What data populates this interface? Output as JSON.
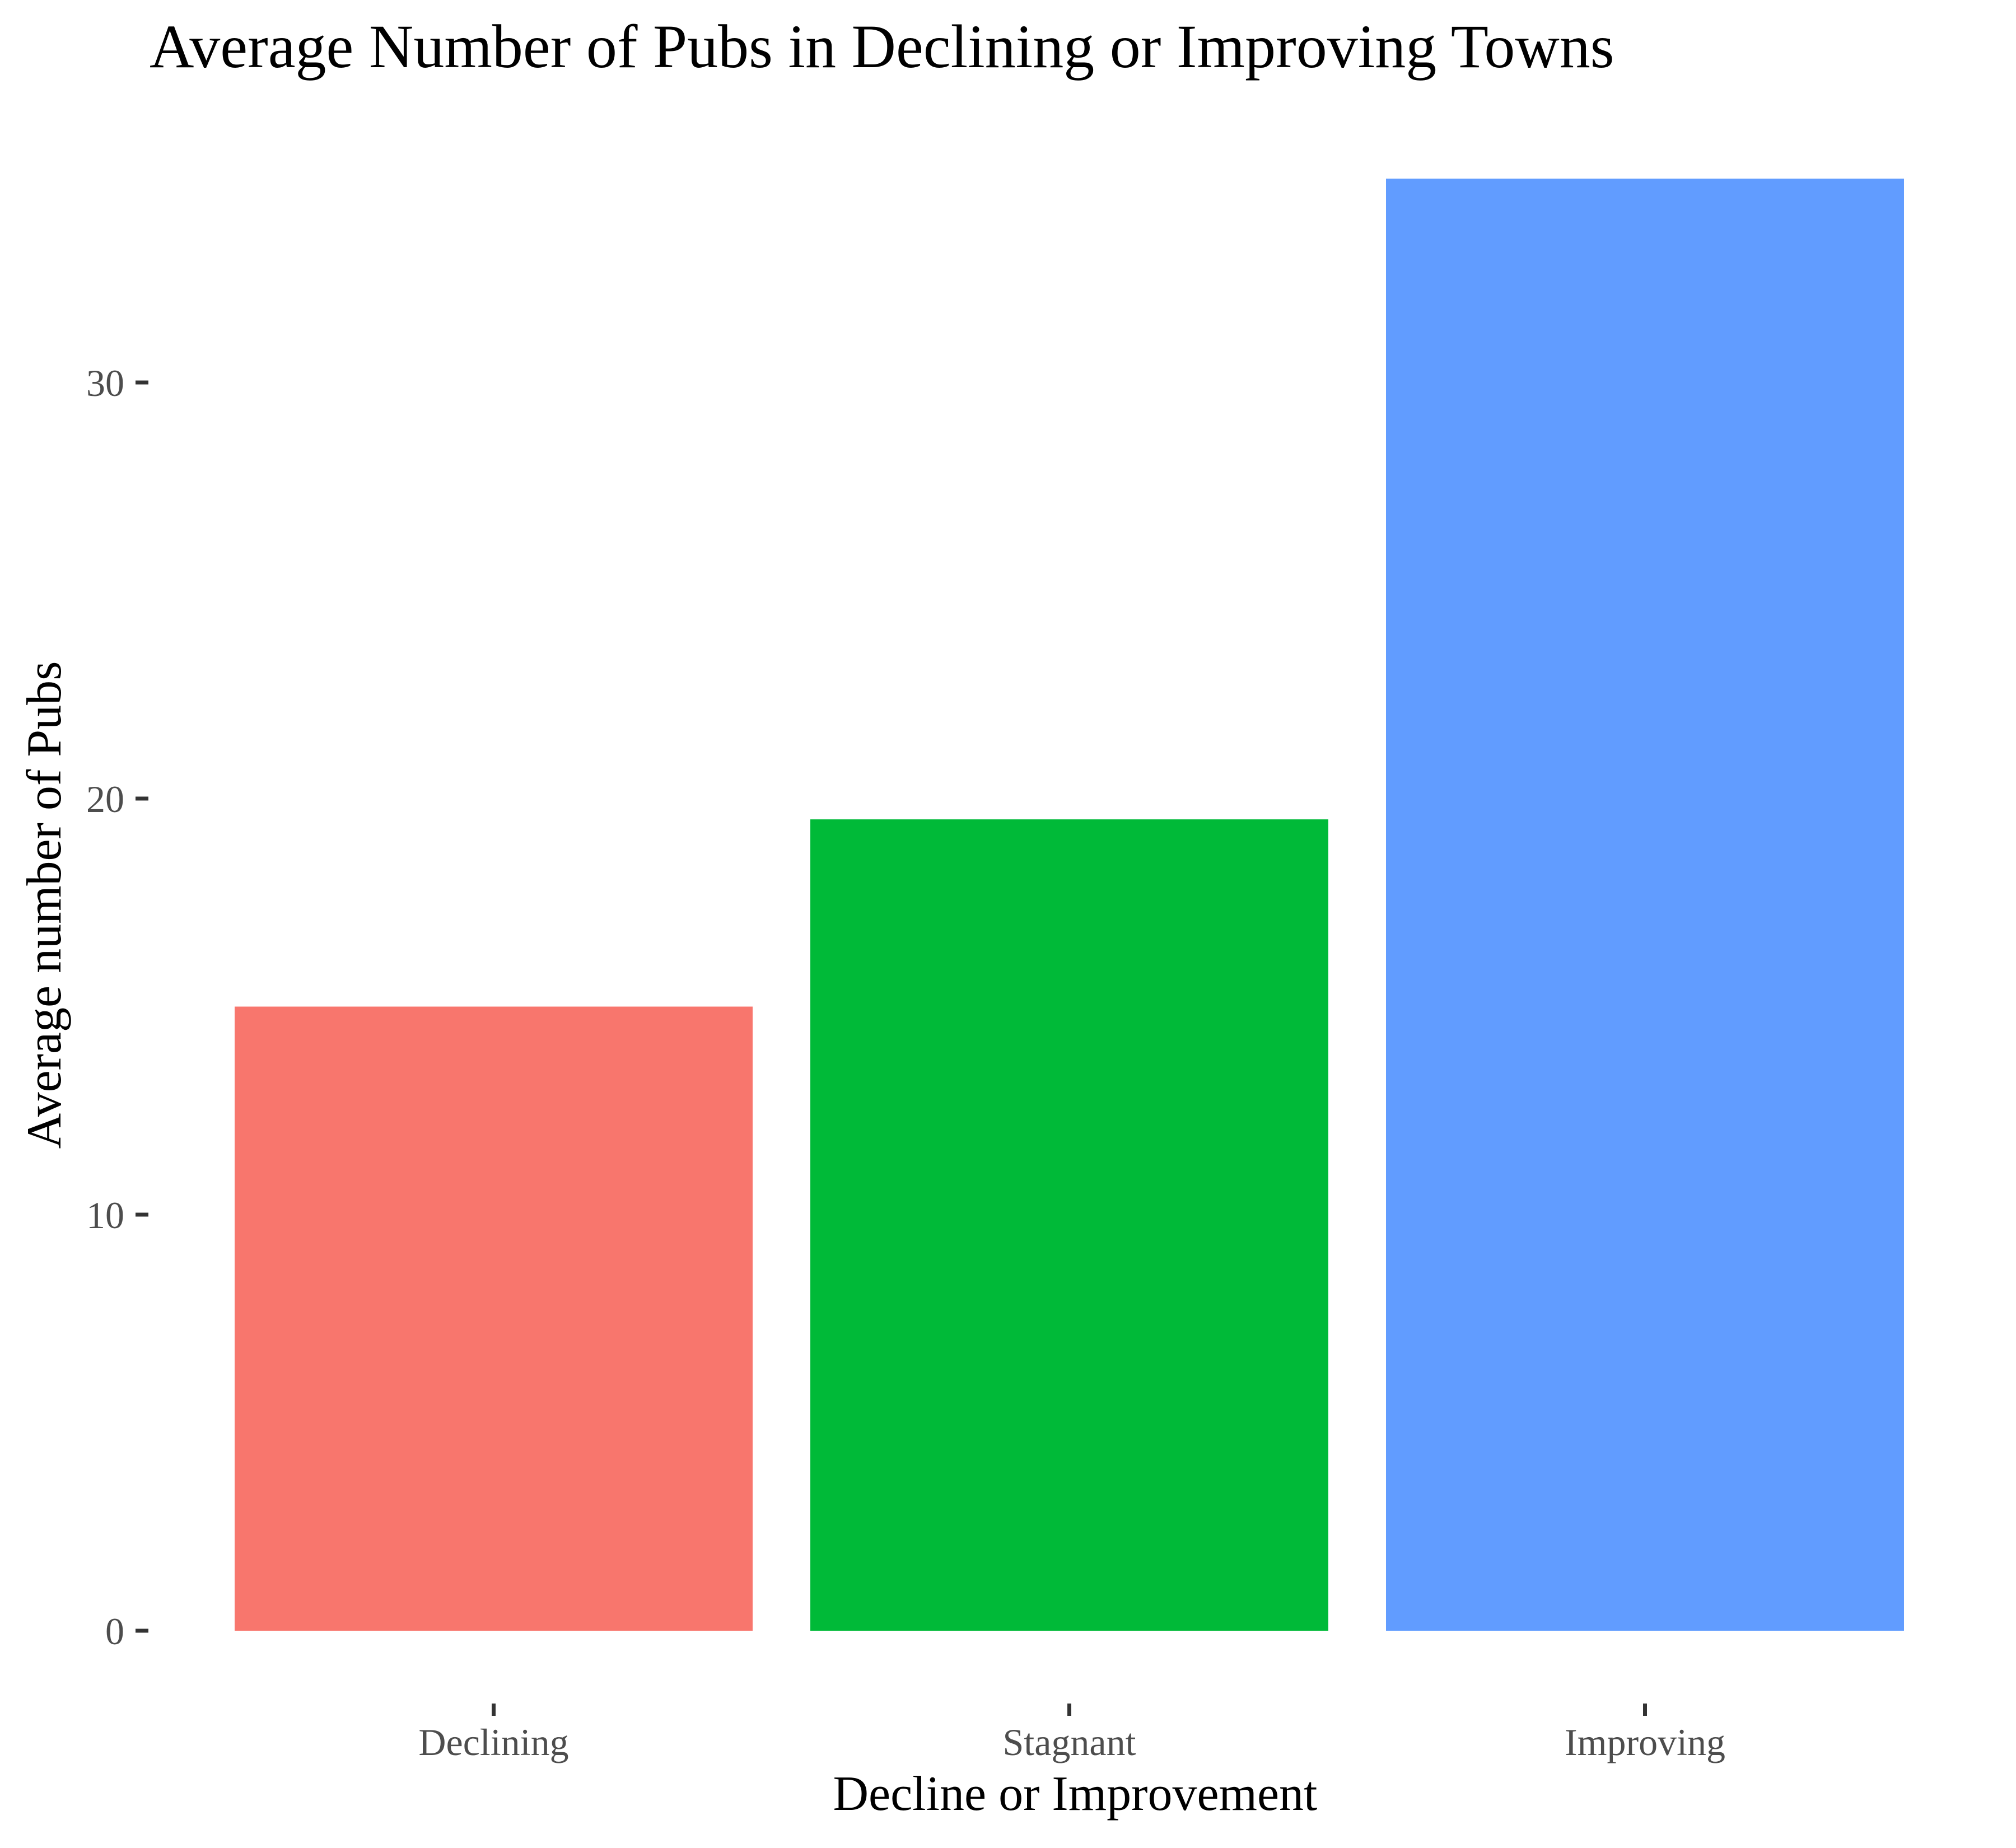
{
  "chart_data": {
    "type": "bar",
    "title": "Average Number of Pubs in Declining or Improving Towns",
    "xlabel": "Decline or Improvement",
    "ylabel": "Average number of Pubs",
    "categories": [
      "Declining",
      "Stagnant",
      "Improving"
    ],
    "values": [
      15.0,
      19.5,
      34.9
    ],
    "colors": [
      "#F8766D",
      "#00BA38",
      "#619CFF"
    ],
    "yticks": [
      0,
      10,
      20,
      30
    ],
    "ytick_labels": [
      "0",
      "10",
      "20",
      "30"
    ],
    "ylim": [
      0,
      36.6
    ],
    "grid": false,
    "legend": "none",
    "background": "#FFFFFF"
  }
}
